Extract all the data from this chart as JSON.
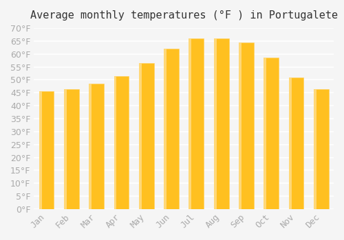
{
  "title": "Average monthly temperatures (°F ) in Portugalete",
  "months": [
    "Jan",
    "Feb",
    "Mar",
    "Apr",
    "May",
    "Jun",
    "Jul",
    "Aug",
    "Sep",
    "Oct",
    "Nov",
    "Dec"
  ],
  "values": [
    45.5,
    46.5,
    48.5,
    51.5,
    56.5,
    62.0,
    66.0,
    66.0,
    64.5,
    58.5,
    51.0,
    46.5
  ],
  "bar_color_main": "#FFC020",
  "bar_color_edge": "#FFD060",
  "background_color": "#F5F5F5",
  "grid_color": "#FFFFFF",
  "text_color": "#AAAAAA",
  "ylim": [
    0,
    70
  ],
  "ytick_step": 5,
  "title_fontsize": 11,
  "tick_fontsize": 9
}
